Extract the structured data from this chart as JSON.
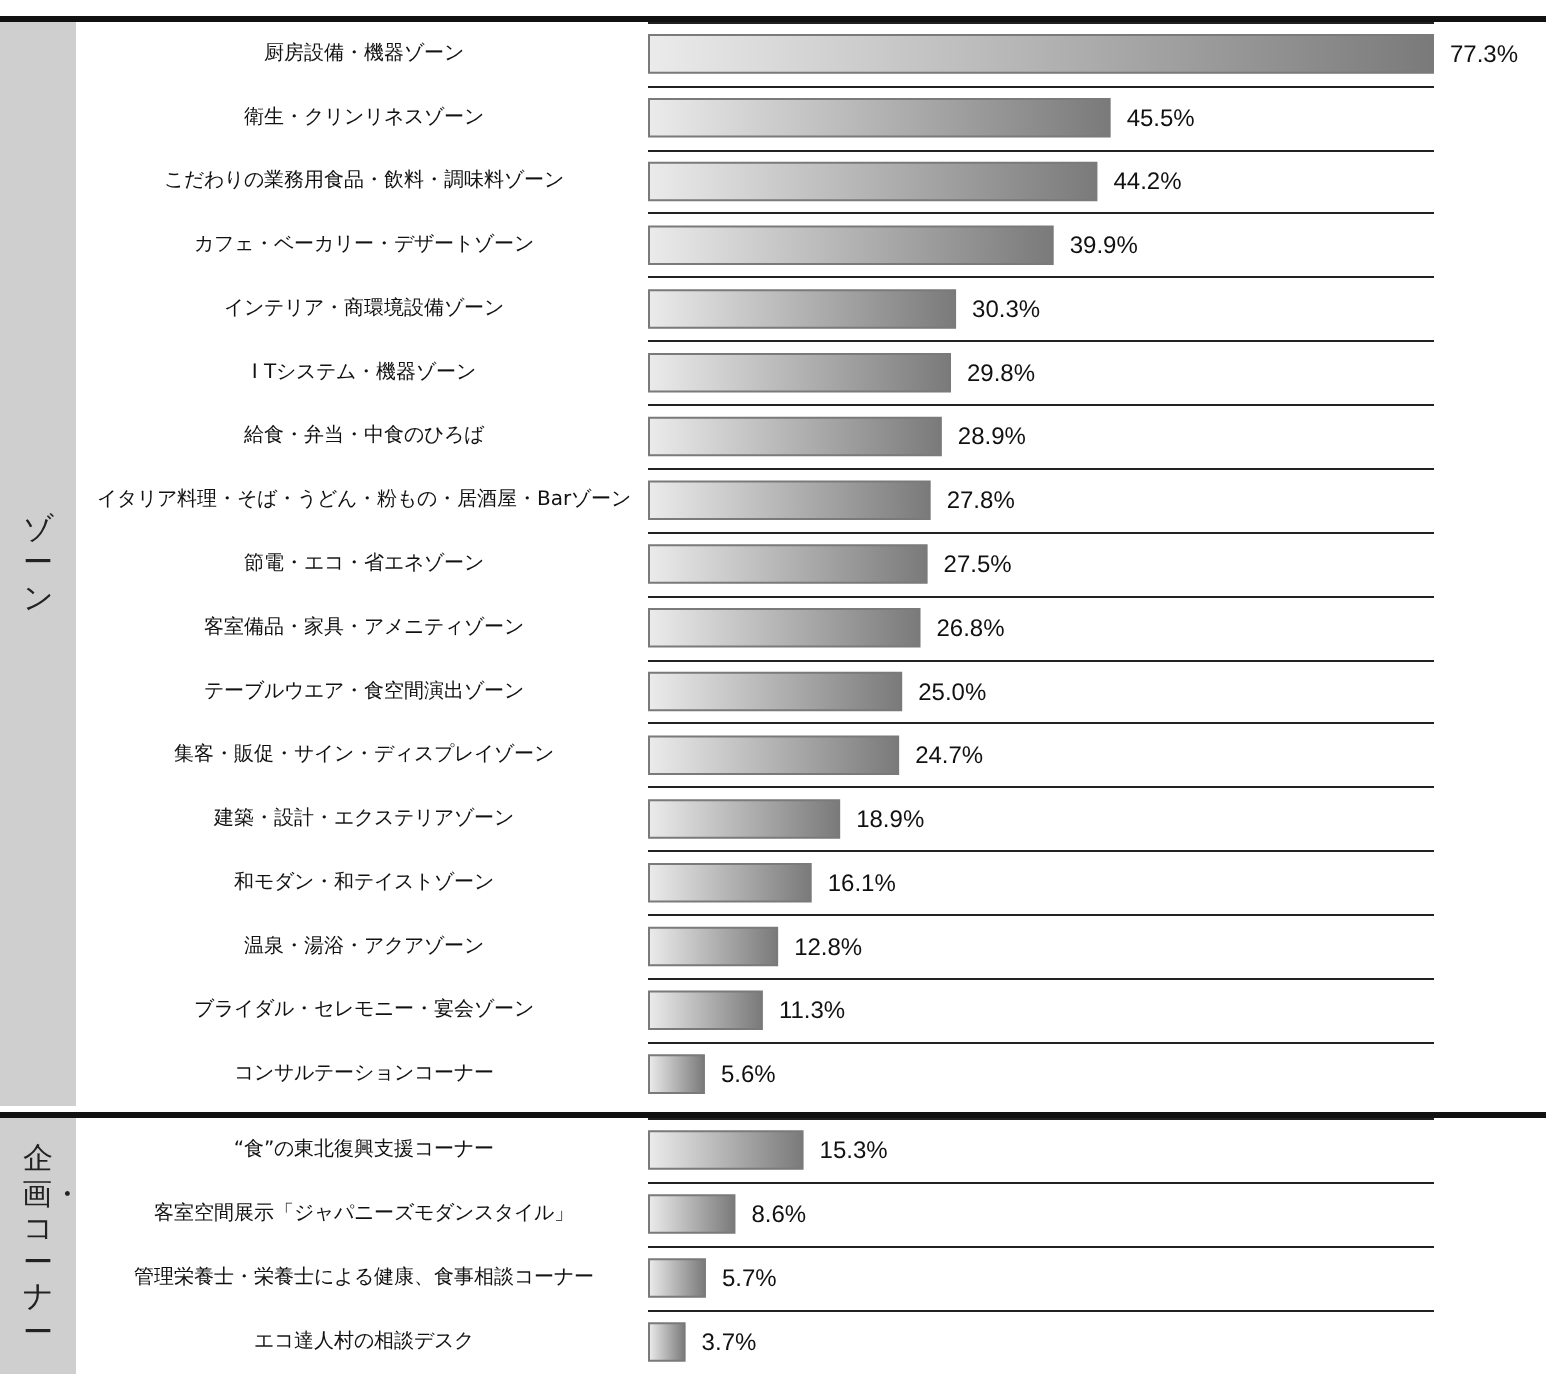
{
  "chart_data": [
    {
      "type": "bar",
      "orientation": "horizontal",
      "title": "ゾーン",
      "categories": [
        "厨房設備・機器ゾーン",
        "衛生・クリンリネスゾーン",
        "こだわりの業務用食品・飲料・調味料ゾーン",
        "カフェ・ベーカリー・デザートゾーン",
        "インテリア・商環境設備ゾーン",
        "I Tシステム・機器ゾーン",
        "給食・弁当・中食のひろば",
        "イタリア料理・そば・うどん・粉もの・居酒屋・Barゾーン",
        "節電・エコ・省エネゾーン",
        "客室備品・家具・アメニティゾーン",
        "テーブルウエア・食空間演出ゾーン",
        "集客・販促・サイン・ディスプレイゾーン",
        "建築・設計・エクステリアゾーン",
        "和モダン・和テイストゾーン",
        "温泉・湯浴・アクアゾーン",
        "ブライダル・セレモニー・宴会ゾーン",
        "コンサルテーションコーナー"
      ],
      "values": [
        77.3,
        45.5,
        44.2,
        39.9,
        30.3,
        29.8,
        28.9,
        27.8,
        27.5,
        26.8,
        25.0,
        24.7,
        18.9,
        16.1,
        12.8,
        11.3,
        5.6
      ],
      "value_labels": [
        "77.3%",
        "45.5%",
        "44.2%",
        "39.9%",
        "30.3%",
        "29.8%",
        "28.9%",
        "27.8%",
        "27.5%",
        "26.8%",
        "25.0%",
        "24.7%",
        "18.9%",
        "16.1%",
        "12.8%",
        "11.3%",
        "5.6%"
      ],
      "color": "#7a7a7a",
      "grid": "y"
    },
    {
      "type": "bar",
      "orientation": "horizontal",
      "title": "企画・コーナー",
      "categories": [
        "“食”の東北復興支援コーナー",
        "客室空間展示「ジャパニーズモダンスタイル」",
        "管理栄養士・栄養士による健康、食事相談コーナー",
        "エコ達人村の相談デスク"
      ],
      "values": [
        15.3,
        8.6,
        5.7,
        3.7
      ],
      "value_labels": [
        "15.3%",
        "8.6%",
        "5.7%",
        "3.7%"
      ],
      "color": "#7a7a7a",
      "grid": "y"
    }
  ]
}
